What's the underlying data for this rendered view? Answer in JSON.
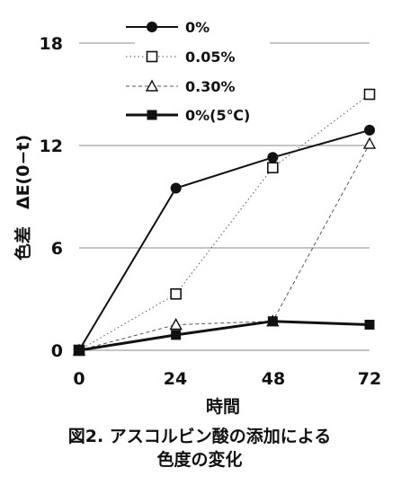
{
  "chart_data": {
    "type": "line",
    "x": [
      0,
      24,
      48,
      72
    ],
    "xlabel": "時間",
    "ylabel": "色差　ΔE(0−t)",
    "xlim": [
      0,
      72
    ],
    "ylim": [
      0,
      18
    ],
    "xticks": [
      "0",
      "24",
      "48",
      "72"
    ],
    "yticks": [
      "0",
      "6",
      "12",
      "18"
    ],
    "grid": "horizontal",
    "legend_position": "top-left",
    "series": [
      {
        "name": "0%",
        "values": [
          0,
          9.5,
          11.3,
          12.9
        ],
        "marker": "filled-circle",
        "line": "solid",
        "color": "#111111"
      },
      {
        "name": "0.05%",
        "values": [
          0,
          3.3,
          10.7,
          15.0
        ],
        "marker": "open-square",
        "line": "dotted",
        "color": "#555555"
      },
      {
        "name": "0.30%",
        "values": [
          0,
          1.5,
          1.7,
          12.1
        ],
        "marker": "open-triangle",
        "line": "dashed",
        "color": "#555555"
      },
      {
        "name": "0%(5℃)",
        "values": [
          0,
          0.9,
          1.7,
          1.5
        ],
        "marker": "filled-square",
        "line": "solid-thick",
        "color": "#111111"
      }
    ],
    "caption_line1": "図2. アスコルビン酸の添加による",
    "caption_line2": "色度の変化"
  }
}
